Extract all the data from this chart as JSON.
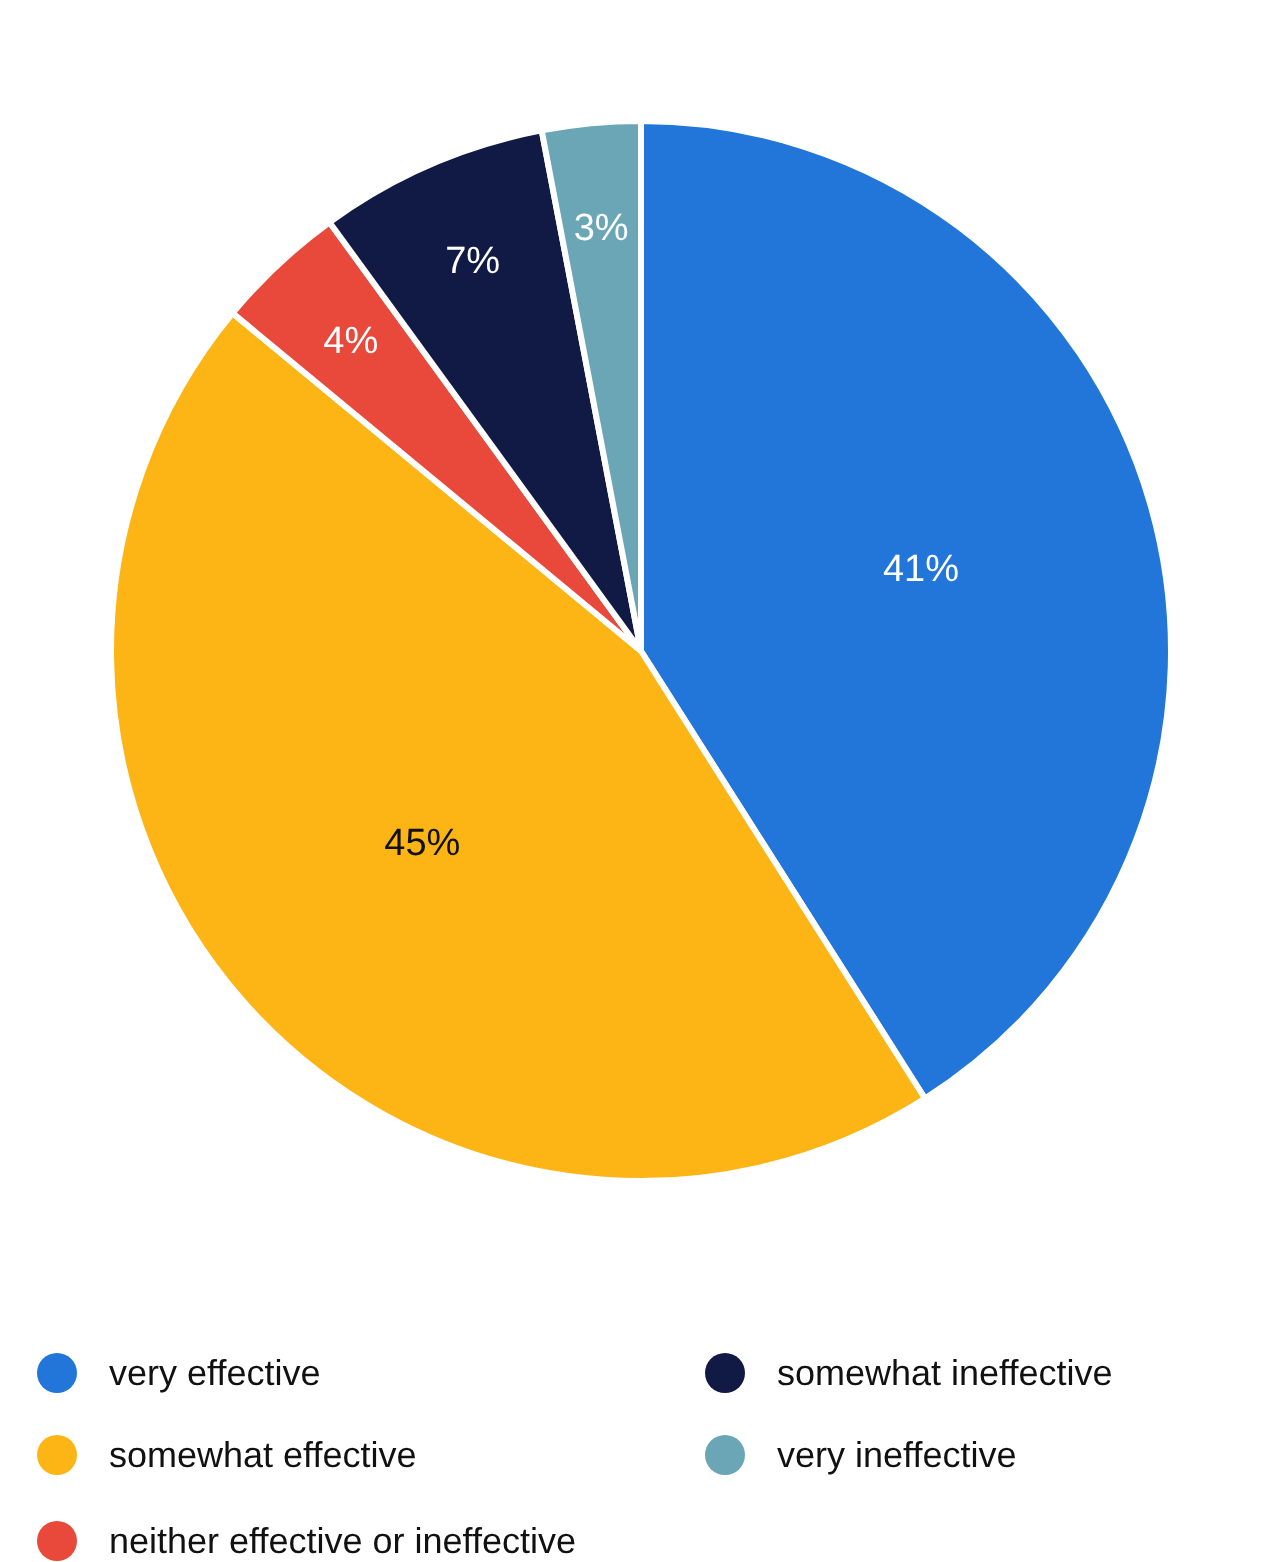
{
  "chart_data": {
    "type": "pie",
    "categories": [
      "very effective",
      "somewhat effective",
      "neither effective or ineffective",
      "somewhat ineffective",
      "very ineffective"
    ],
    "values": [
      41,
      45,
      4,
      7,
      3
    ],
    "colors": [
      "#2276d9",
      "#fdb515",
      "#e8493a",
      "#111a45",
      "#6aa6b5"
    ],
    "value_labels": [
      "41%",
      "45%",
      "4%",
      "7%",
      "3%"
    ],
    "legend": "bottom"
  }
}
